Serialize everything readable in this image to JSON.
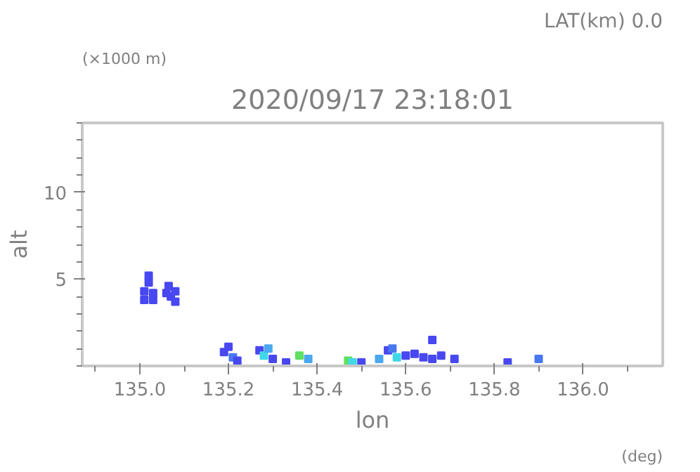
{
  "chart_data": {
    "type": "scatter",
    "title": "2020/09/17 23:18:01",
    "xlabel": "lon",
    "ylabel": "alt",
    "annotations": [
      "LAT(km) 0.0",
      "(×1000 m)",
      "(deg)"
    ],
    "marker": "square",
    "grid": false,
    "xlim": [
      134.87,
      136.18
    ],
    "xticks": [
      {
        "value": 135.0,
        "label": "135.0"
      },
      135.2,
      135.4,
      135.6,
      135.8,
      {
        "value": 136.0,
        "label": "136.0"
      }
    ],
    "ylim": [
      0,
      14
    ],
    "yticks": [
      5,
      10
    ],
    "x": [
      135.01,
      135.01,
      135.02,
      135.02,
      135.03,
      135.03,
      135.06,
      135.065,
      135.07,
      135.08,
      135.08,
      135.19,
      135.2,
      135.21,
      135.22,
      135.27,
      135.28,
      135.29,
      135.3,
      135.33,
      135.36,
      135.38,
      135.47,
      135.48,
      135.5,
      135.54,
      135.56,
      135.57,
      135.58,
      135.6,
      135.62,
      135.64,
      135.66,
      135.66,
      135.68,
      135.71,
      135.83,
      135.9
    ],
    "values": [
      3.8,
      4.3,
      4.8,
      5.2,
      4.2,
      3.8,
      4.2,
      4.6,
      4.0,
      3.7,
      4.3,
      0.8,
      1.1,
      0.5,
      0.3,
      0.9,
      0.6,
      1.0,
      0.4,
      0.2,
      0.6,
      0.4,
      0.3,
      0.2,
      0.2,
      0.4,
      0.9,
      1.0,
      0.5,
      0.6,
      0.7,
      0.5,
      1.5,
      0.4,
      0.6,
      0.4,
      0.2,
      0.4
    ],
    "colors": [
      "#4848f0",
      "#4848f0",
      "#4848f0",
      "#4848f0",
      "#4848f0",
      "#4848f0",
      "#4848f0",
      "#4848f0",
      "#4848f0",
      "#4848f0",
      "#4848f0",
      "#4848f0",
      "#4848f0",
      "#4878f0",
      "#4848f0",
      "#4848f0",
      "#40d8e8",
      "#4aa8f0",
      "#4848f0",
      "#4848f0",
      "#60e060",
      "#4aa8f0",
      "#60e060",
      "#40d8e8",
      "#4848f0",
      "#4aa8f0",
      "#4848f0",
      "#4878f0",
      "#40d8e8",
      "#4848f0",
      "#4848f0",
      "#4848f0",
      "#4848f0",
      "#4848f0",
      "#4848f0",
      "#4848f0",
      "#4848f0",
      "#4878f0"
    ]
  }
}
